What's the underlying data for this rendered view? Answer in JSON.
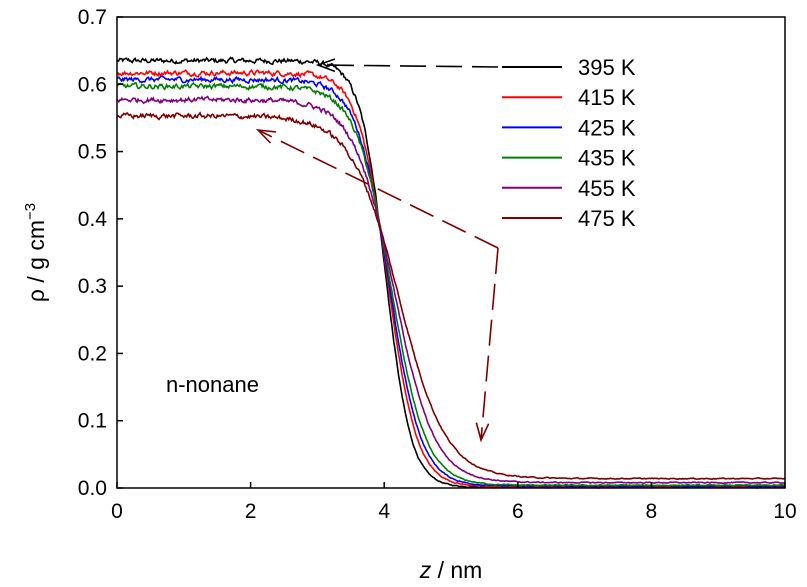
{
  "chart_data": {
    "type": "line",
    "xlabel_var": "z",
    "xlabel_unit": " / nm",
    "ylabel": "ρ / g cm",
    "ylabel_sup": "−3",
    "xlim": [
      0,
      10
    ],
    "ylim": [
      0.0,
      0.7
    ],
    "x_ticks": [
      "0",
      "2",
      "4",
      "6",
      "8",
      "10"
    ],
    "y_ticks": [
      "0.0",
      "0.1",
      "0.2",
      "0.3",
      "0.4",
      "0.5",
      "0.6",
      "0.7"
    ],
    "grid": false,
    "legend_position": "top-right",
    "annotation": "n-nonane",
    "series": [
      {
        "name": "395 K",
        "color": "#000000",
        "liquid": 0.635,
        "vapor": 0.001,
        "z0": 4.02,
        "width": 0.38
      },
      {
        "name": "415 K",
        "color": "#ff0000",
        "liquid": 0.617,
        "vapor": 0.002,
        "z0": 4.05,
        "width": 0.44
      },
      {
        "name": "425 K",
        "color": "#0000ff",
        "liquid": 0.607,
        "vapor": 0.003,
        "z0": 4.07,
        "width": 0.48
      },
      {
        "name": "435 K",
        "color": "#008000",
        "liquid": 0.597,
        "vapor": 0.004,
        "z0": 4.1,
        "width": 0.52
      },
      {
        "name": "455 K",
        "color": "#800080",
        "liquid": 0.577,
        "vapor": 0.008,
        "z0": 4.15,
        "width": 0.6
      },
      {
        "name": "475 K",
        "color": "#800000",
        "liquid": 0.553,
        "vapor": 0.014,
        "z0": 4.22,
        "width": 0.7
      }
    ]
  }
}
